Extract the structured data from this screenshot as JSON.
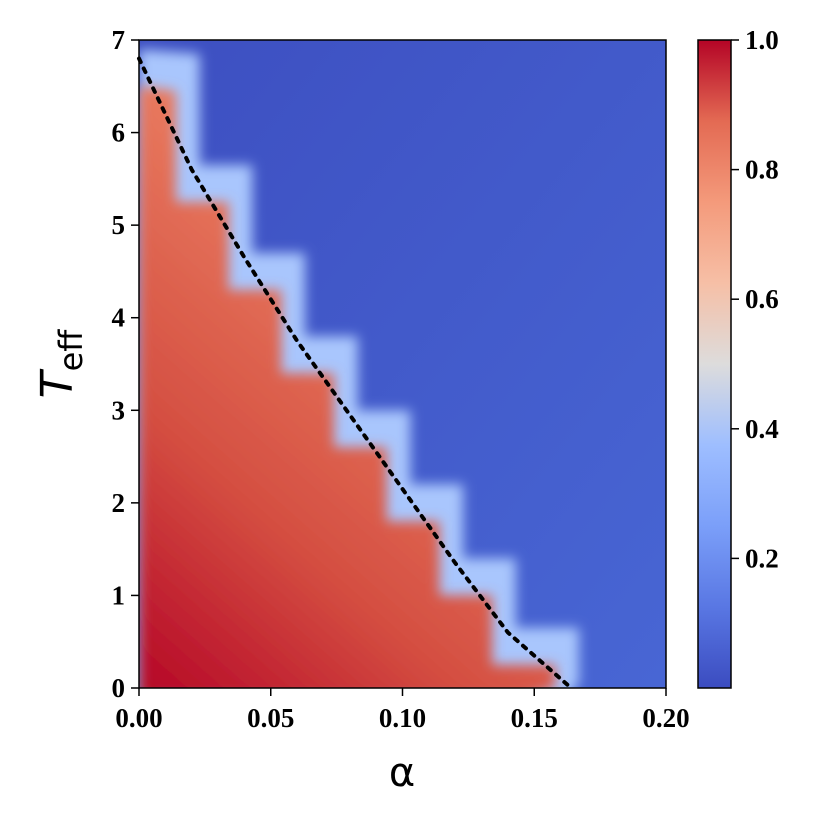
{
  "chart_data": {
    "type": "heatmap",
    "title": "",
    "xlabel": "α",
    "ylabel_main": "T",
    "ylabel_sub": "eff",
    "xlim": [
      0.0,
      0.2
    ],
    "ylim": [
      0,
      7
    ],
    "x_ticks": [
      "0.00",
      "0.05",
      "0.10",
      "0.15",
      "0.20"
    ],
    "x_tick_values": [
      0.0,
      0.05,
      0.1,
      0.15,
      0.2
    ],
    "y_ticks": [
      "0",
      "1",
      "2",
      "3",
      "4",
      "5",
      "6",
      "7"
    ],
    "y_tick_values": [
      0,
      1,
      2,
      3,
      4,
      5,
      6,
      7
    ],
    "colorbar": {
      "colormap": "coolwarm",
      "min": 0.0,
      "max": 1.0,
      "ticks": [
        "0.2",
        "0.4",
        "0.6",
        "0.8",
        "1.0"
      ],
      "tick_values": [
        0.2,
        0.4,
        0.6,
        0.8,
        1.0
      ],
      "location": "right"
    },
    "boundary_line": {
      "style": "dotted",
      "color": "#000000",
      "points": [
        [
          0.0,
          6.8
        ],
        [
          0.02,
          5.6
        ],
        [
          0.04,
          4.65
        ],
        [
          0.06,
          3.75
        ],
        [
          0.08,
          2.95
        ],
        [
          0.1,
          2.15
        ],
        [
          0.12,
          1.35
        ],
        [
          0.14,
          0.6
        ],
        [
          0.164,
          0.0
        ]
      ]
    },
    "regions": [
      {
        "description": "high value (red) below boundary",
        "value_range": [
          0.7,
          1.0
        ]
      },
      {
        "description": "low value (blue) above boundary",
        "value_range": [
          0.0,
          0.1
        ]
      }
    ],
    "grid": false
  }
}
